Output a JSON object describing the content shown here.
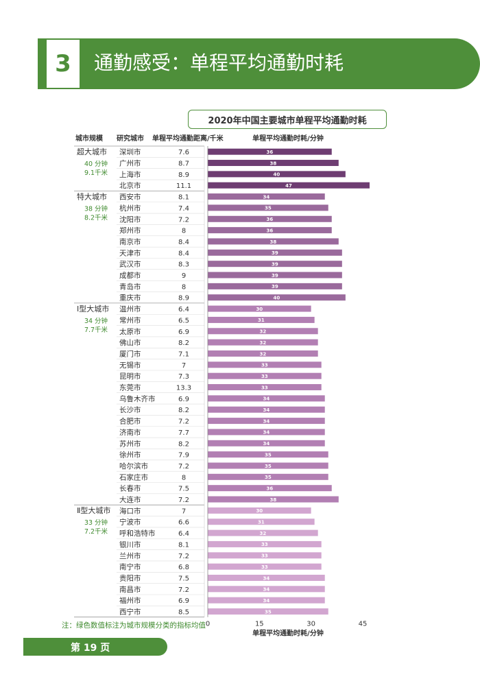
{
  "section": {
    "number": "3",
    "title": "通勤感受：单程平均通勤时耗"
  },
  "chart_data": {
    "type": "bar",
    "orientation": "horizontal",
    "title": "2020年中国主要城市单程平均通勤时耗",
    "columns": {
      "tier": "城市规模",
      "city": "研究城市",
      "distance": "单程平均通勤距离/千米",
      "time": "单程平均通勤时耗/分钟"
    },
    "xlabel": "单程平均通勤时耗/分钟",
    "xticks": [
      0,
      15,
      30,
      45
    ],
    "xlim": [
      0,
      47
    ],
    "groups": [
      {
        "tier": "超大城市",
        "avg_time": "40 分钟",
        "avg_distance": "9.1千米",
        "color": "#6e3d72",
        "cities": [
          {
            "name": "深圳市",
            "distance": "7.6",
            "time": 36
          },
          {
            "name": "广州市",
            "distance": "8.7",
            "time": 38
          },
          {
            "name": "上海市",
            "distance": "8.9",
            "time": 40
          },
          {
            "name": "北京市",
            "distance": "11.1",
            "time": 47
          }
        ]
      },
      {
        "tier": "特大城市",
        "avg_time": "38 分钟",
        "avg_distance": "8.2千米",
        "color": "#9a6a9c",
        "cities": [
          {
            "name": "西安市",
            "distance": "8.1",
            "time": 34
          },
          {
            "name": "杭州市",
            "distance": "7.4",
            "time": 35
          },
          {
            "name": "沈阳市",
            "distance": "7.2",
            "time": 36
          },
          {
            "name": "郑州市",
            "distance": "8",
            "time": 36
          },
          {
            "name": "南京市",
            "distance": "8.4",
            "time": 38
          },
          {
            "name": "天津市",
            "distance": "8.4",
            "time": 39
          },
          {
            "name": "武汉市",
            "distance": "8.3",
            "time": 39
          },
          {
            "name": "成都市",
            "distance": "9",
            "time": 39
          },
          {
            "name": "青岛市",
            "distance": "8",
            "time": 39
          },
          {
            "name": "重庆市",
            "distance": "8.9",
            "time": 40
          }
        ]
      },
      {
        "tier": "Ⅰ型大城市",
        "avg_time": "34 分钟",
        "avg_distance": "7.7千米",
        "color": "#b27fb3",
        "cities": [
          {
            "name": "温州市",
            "distance": "6.4",
            "time": 30
          },
          {
            "name": "常州市",
            "distance": "6.5",
            "time": 31
          },
          {
            "name": "太原市",
            "distance": "6.9",
            "time": 32
          },
          {
            "name": "佛山市",
            "distance": "8.2",
            "time": 32
          },
          {
            "name": "厦门市",
            "distance": "7.1",
            "time": 32
          },
          {
            "name": "无锡市",
            "distance": "7",
            "time": 33
          },
          {
            "name": "昆明市",
            "distance": "7.3",
            "time": 33
          },
          {
            "name": "东莞市",
            "distance": "13.3",
            "time": 33
          },
          {
            "name": "乌鲁木齐市",
            "distance": "6.9",
            "time": 34
          },
          {
            "name": "长沙市",
            "distance": "8.2",
            "time": 34
          },
          {
            "name": "合肥市",
            "distance": "7.2",
            "time": 34
          },
          {
            "name": "济南市",
            "distance": "7.7",
            "time": 34
          },
          {
            "name": "苏州市",
            "distance": "8.2",
            "time": 34
          },
          {
            "name": "徐州市",
            "distance": "7.9",
            "time": 35
          },
          {
            "name": "哈尔滨市",
            "distance": "7.2",
            "time": 35
          },
          {
            "name": "石家庄市",
            "distance": "8",
            "time": 35
          },
          {
            "name": "长春市",
            "distance": "7.5",
            "time": 36
          },
          {
            "name": "大连市",
            "distance": "7.2",
            "time": 38
          }
        ]
      },
      {
        "tier": "Ⅱ型大城市",
        "avg_time": "33 分钟",
        "avg_distance": "7.2千米",
        "color": "#d2a6d0",
        "cities": [
          {
            "name": "海口市",
            "distance": "7",
            "time": 30
          },
          {
            "name": "宁波市",
            "distance": "6.6",
            "time": 31
          },
          {
            "name": "呼和浩特市",
            "distance": "6.4",
            "time": 32
          },
          {
            "name": "银川市",
            "distance": "8.1",
            "time": 33
          },
          {
            "name": "兰州市",
            "distance": "7.2",
            "time": 33
          },
          {
            "name": "南宁市",
            "distance": "6.8",
            "time": 33
          },
          {
            "name": "贵阳市",
            "distance": "7.5",
            "time": 34
          },
          {
            "name": "南昌市",
            "distance": "7.2",
            "time": 34
          },
          {
            "name": "福州市",
            "distance": "6.9",
            "time": 34
          },
          {
            "name": "西宁市",
            "distance": "8.5",
            "time": 35
          }
        ]
      }
    ],
    "note": "注：绿色数值标注为城市规模分类的指标均值",
    "highlight_color": "#3f8a2e"
  },
  "footer": {
    "page": "第 19 页"
  }
}
